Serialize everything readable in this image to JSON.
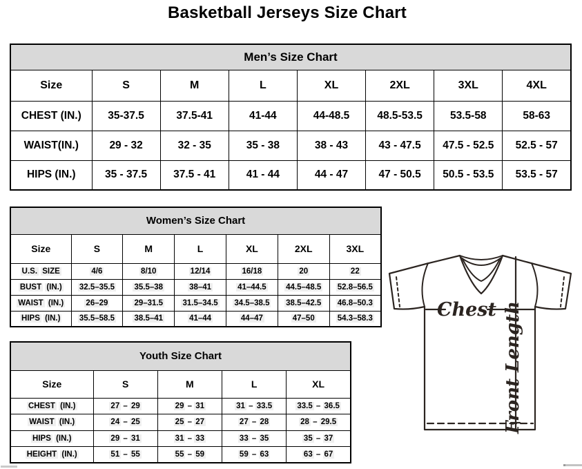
{
  "page_title": "Basketball Jerseys Size Chart",
  "colors": {
    "table_title_bg": "#d9d9d9",
    "cell_highlight": "#efefef",
    "border": "#000000",
    "diagram_line": "#2b2420"
  },
  "tables": {
    "men": {
      "title": "Men’s Size Chart",
      "columns": [
        "Size",
        "S",
        "M",
        "L",
        "XL",
        "2XL",
        "3XL",
        "4XL"
      ],
      "rows": [
        {
          "label": "CHEST (IN.)",
          "values": [
            "35-37.5",
            "37.5-41",
            "41-44",
            "44-48.5",
            "48.5-53.5",
            "53.5-58",
            "58-63"
          ]
        },
        {
          "label": "WAIST(IN.)",
          "values": [
            "29 - 32",
            "32 - 35",
            "35 - 38",
            "38 - 43",
            "43 - 47.5",
            "47.5 - 52.5",
            "52.5 - 57"
          ]
        },
        {
          "label": "HIPS (IN.)",
          "values": [
            "35 - 37.5",
            "37.5 - 41",
            "41 - 44",
            "44 - 47",
            "47 - 50.5",
            "50.5 - 53.5",
            "53.5 - 57"
          ]
        }
      ]
    },
    "women": {
      "title": "Women’s Size Chart",
      "columns": [
        "Size",
        "S",
        "M",
        "L",
        "XL",
        "2XL",
        "3XL"
      ],
      "rows": [
        {
          "label": "U.S. SIZE",
          "values": [
            "4/6",
            "8/10",
            "12/14",
            "16/18",
            "20",
            "22"
          ]
        },
        {
          "label": "BUST (IN.)",
          "values": [
            "32.5–35.5",
            "35.5–38",
            "38–41",
            "41–44.5",
            "44.5–48.5",
            "52.8–56.5"
          ]
        },
        {
          "label": "WAIST (IN.)",
          "values": [
            "26–29",
            "29–31.5",
            "31.5–34.5",
            "34.5–38.5",
            "38.5–42.5",
            "46.8–50.3"
          ]
        },
        {
          "label": "HIPS (IN.)",
          "values": [
            "35.5–58.5",
            "38.5–41",
            "41–44",
            "44–47",
            "47–50",
            "54.3–58.3"
          ]
        }
      ]
    },
    "youth": {
      "title": "Youth Size Chart",
      "columns": [
        "Size",
        "S",
        "M",
        "L",
        "XL"
      ],
      "rows": [
        {
          "label": "CHEST (IN.)",
          "values": [
            "27 – 29",
            "29 – 31",
            "31 – 33.5",
            "33.5 – 36.5"
          ]
        },
        {
          "label": "WAIST (IN.)",
          "values": [
            "24 – 25",
            "25 – 27",
            "27 – 28",
            "28 – 29.5"
          ]
        },
        {
          "label": "HIPS (IN.)",
          "values": [
            "29 – 31",
            "31 – 33",
            "33 – 35",
            "35 – 37"
          ]
        },
        {
          "label": "HEIGHT (IN.)",
          "values": [
            "51 – 55",
            "55 – 59",
            "59 – 63",
            "63 – 67"
          ]
        }
      ]
    }
  },
  "diagram": {
    "chest_label": "Chest",
    "front_length_label": "Front Length"
  }
}
